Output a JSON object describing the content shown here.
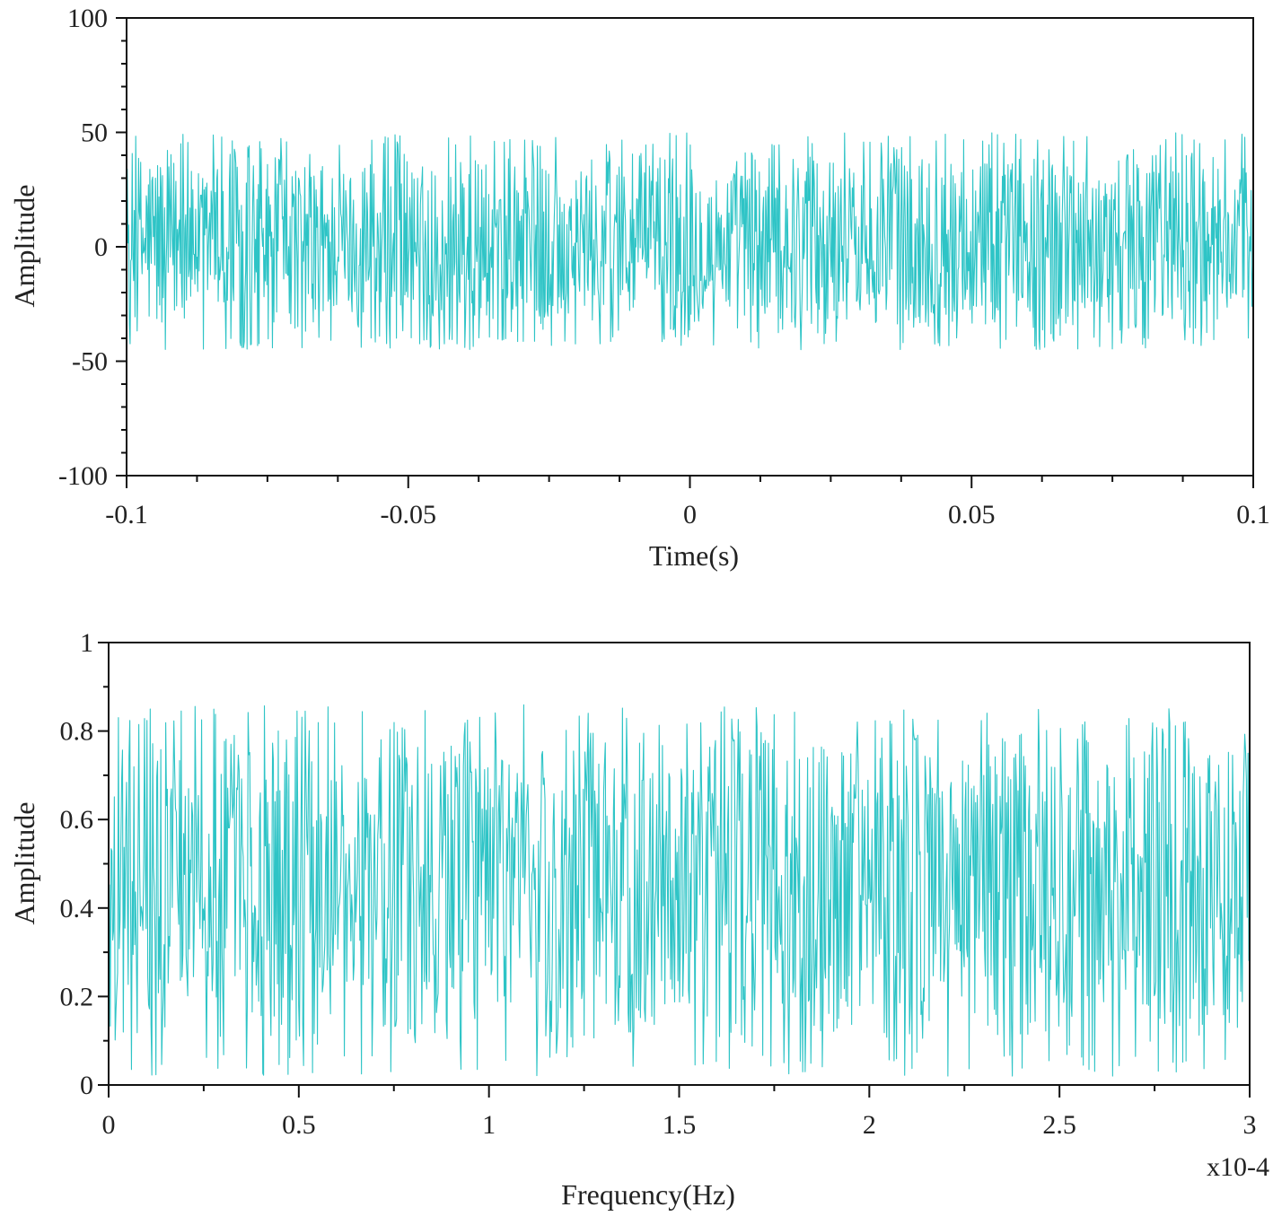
{
  "chart_data": [
    {
      "type": "line",
      "name": "time-domain",
      "xlabel": "Time(s)",
      "ylabel": "Amplitude",
      "xlim": [
        -0.1,
        0.1
      ],
      "ylim": [
        -100,
        100
      ],
      "x_ticks": [
        -0.1,
        -0.05,
        0,
        0.05,
        0.1
      ],
      "x_tick_labels": [
        "-0.1",
        "-0.05",
        "0",
        "0.05",
        "0.1"
      ],
      "y_ticks": [
        100,
        50,
        0,
        -50,
        -100
      ],
      "y_tick_labels": [
        "100",
        "50",
        "0",
        "-50",
        "-100"
      ],
      "x_minor_step": 0.0125,
      "y_minor_step": 10,
      "series": [
        {
          "name": "signal",
          "color": "#2ec4c6",
          "description": "dense noise signal",
          "n_points": 1600,
          "center": 2,
          "upper_envelope": 50,
          "lower_envelope": -45
        }
      ]
    },
    {
      "type": "line",
      "name": "frequency-domain",
      "xlabel": "Frequency(Hz)",
      "ylabel": "Amplitude",
      "x_scale_note": "x10-4",
      "xlim": [
        0,
        3
      ],
      "ylim": [
        0,
        1
      ],
      "x_ticks": [
        0,
        0.5,
        1,
        1.5,
        2,
        2.5,
        3
      ],
      "x_tick_labels": [
        "0",
        "0.5",
        "1",
        "1.5",
        "2",
        "2.5",
        "3"
      ],
      "y_ticks": [
        1,
        0.8,
        0.6,
        0.4,
        0.2,
        0
      ],
      "y_tick_labels": [
        "1",
        "0.8",
        "0.6",
        "0.4",
        "0.2",
        "0"
      ],
      "x_minor_step": 0.25,
      "y_minor_step": 0.1,
      "series": [
        {
          "name": "spectrum",
          "color": "#2ec4c6",
          "n_points": 1400,
          "center": 0.45,
          "upper_envelope": 0.86,
          "lower_envelope": 0.02
        }
      ]
    }
  ]
}
